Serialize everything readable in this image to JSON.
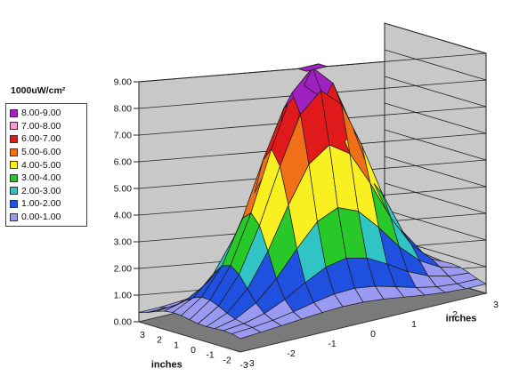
{
  "chart_data": {
    "type": "surface3d",
    "z_tick_labels": [
      "0.00",
      "1.00",
      "2.00",
      "3.00",
      "4.00",
      "5.00",
      "6.00",
      "7.00",
      "8.00",
      "9.00"
    ],
    "zlim": [
      0,
      9
    ],
    "x_tick_labels": [
      "-3",
      "-2",
      "-1",
      "0",
      "1",
      "2",
      "3"
    ],
    "y_tick_labels": [
      "-3",
      "-2",
      "-1",
      "0",
      "1",
      "2",
      "3"
    ],
    "x_values": [
      -3,
      -2.5,
      -2,
      -1.5,
      -1,
      -0.5,
      0,
      0.5,
      1,
      1.5,
      2,
      2.5,
      3
    ],
    "y_values": [
      -3,
      -2.5,
      -2,
      -1.5,
      -1,
      -0.5,
      0,
      0.5,
      1,
      1.5,
      2,
      2.5,
      3
    ],
    "xlabel": "inches",
    "ylabel": "inches",
    "peak_value": 9.0,
    "profile": "gaussian",
    "legend": {
      "title": "1000uW/cm²",
      "placement": "left",
      "items": [
        {
          "label": "8.00-9.00",
          "color": "#a020c0"
        },
        {
          "label": "7.00-8.00",
          "color": "#f49ad6"
        },
        {
          "label": "6.00-7.00",
          "color": "#e01a1a"
        },
        {
          "label": "5.00-6.00",
          "color": "#f07018"
        },
        {
          "label": "4.00-5.00",
          "color": "#f8f020"
        },
        {
          "label": "3.00-4.00",
          "color": "#28c828"
        },
        {
          "label": "2.00-3.00",
          "color": "#30c4c4"
        },
        {
          "label": "1.00-2.00",
          "color": "#2050e0"
        },
        {
          "label": "0.00-1.00",
          "color": "#9a9af2"
        }
      ]
    },
    "grid": true
  }
}
